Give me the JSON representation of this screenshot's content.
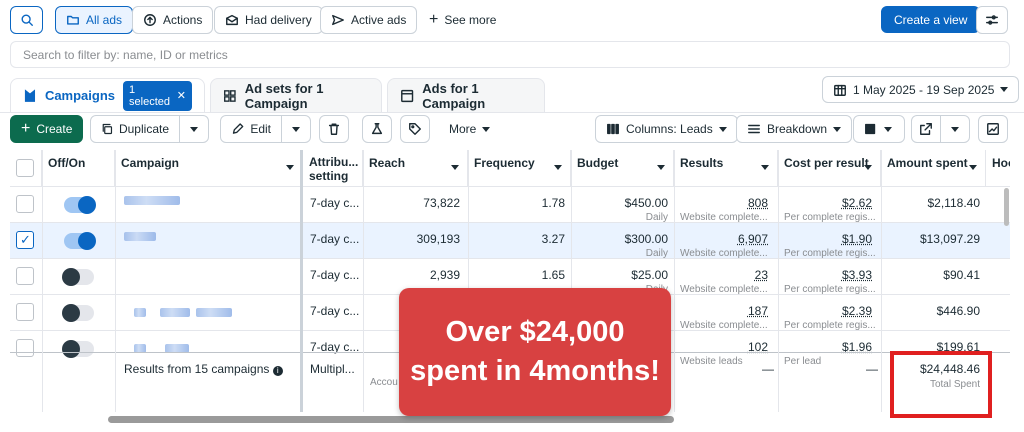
{
  "toolbar": {
    "all_ads": "All ads",
    "actions": "Actions",
    "had_delivery": "Had delivery",
    "active_ads": "Active ads",
    "see_more": "See more",
    "create_view": "Create a view"
  },
  "search": {
    "placeholder": "Search to filter by: name, ID or metrics"
  },
  "tabs": {
    "campaigns": "Campaigns",
    "selected_chip": "1 selected",
    "ad_sets": "Ad sets for 1 Campaign",
    "ads": "Ads for 1 Campaign"
  },
  "date_range": "1 May 2025 - 19 Sep 2025",
  "actions_bar": {
    "create": "Create",
    "duplicate": "Duplicate",
    "edit": "Edit",
    "more": "More",
    "columns": "Columns: Leads",
    "breakdown": "Breakdown"
  },
  "table": {
    "headers": {
      "off_on": "Off/On",
      "campaign": "Campaign",
      "attribution_1": "Attribu...",
      "attribution_2": "setting",
      "reach": "Reach",
      "frequency": "Frequency",
      "budget": "Budget",
      "results": "Results",
      "cost_per_result": "Cost per result",
      "amount_spent": "Amount spent",
      "hoo": "Hoo"
    },
    "rows": [
      {
        "on": true,
        "checked": false,
        "attribution": "7-day c...",
        "reach": "73,822",
        "frequency": "1.78",
        "budget": "$450.00",
        "budget_sub": "Daily",
        "results": "808",
        "results_sub": "Website complete...",
        "cpr": "$2.62",
        "cpr_sub": "Per complete regis...",
        "spent": "$2,118.40"
      },
      {
        "on": true,
        "checked": true,
        "attribution": "7-day c...",
        "reach": "309,193",
        "frequency": "3.27",
        "budget": "$300.00",
        "budget_sub": "Daily",
        "results": "6,907",
        "results_sub": "Website complete...",
        "cpr": "$1.90",
        "cpr_sub": "Per complete regis...",
        "spent": "$13,097.29"
      },
      {
        "on": false,
        "checked": false,
        "attribution": "7-day c...",
        "reach": "2,939",
        "frequency": "1.65",
        "budget": "$25.00",
        "budget_sub": "Daily",
        "results": "23",
        "results_sub": "Website complete...",
        "cpr": "$3.93",
        "cpr_sub": "Per complete regis...",
        "spent": "$90.41"
      },
      {
        "on": false,
        "checked": false,
        "attribution": "7-day c...",
        "reach": "",
        "frequency": "",
        "budget": "",
        "budget_sub": "",
        "results": "187",
        "results_sub": "Website complete...",
        "cpr": "$2.39",
        "cpr_sub": "Per complete regis...",
        "spent": "$446.90"
      },
      {
        "on": false,
        "checked": false,
        "attribution": "7-day c...",
        "reach": "",
        "frequency": "",
        "budget": "",
        "budget_sub": "",
        "results": "102",
        "results_sub": "Website leads",
        "cpr": "$1.96",
        "cpr_sub": "Per lead",
        "spent": "$199.61"
      }
    ],
    "summary": {
      "label": "Results from 15 campaigns",
      "attribution": "Multipl...",
      "reach_sub": "Accou",
      "results": "—",
      "cpr": "—",
      "spent": "$24,448.46",
      "spent_sub": "Total Spent"
    }
  },
  "overlay": {
    "line1": "Over $24,000",
    "line2": "spent in 4months!"
  },
  "colors": {
    "accent": "#0a66c2",
    "create": "#0c6b4e",
    "overlay": "#d84141",
    "highlight": "#e02020"
  }
}
